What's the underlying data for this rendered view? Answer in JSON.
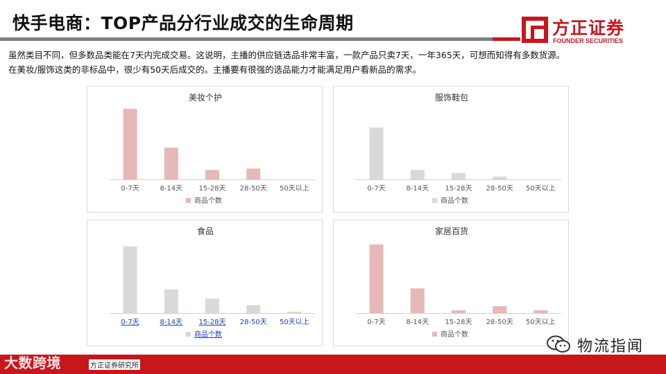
{
  "title": "快手电商：TOP产品分行业成交的生命周期",
  "logo": {
    "name": "方正证券",
    "sub": "FOUNDER SECURITIES",
    "color": "#c8161d"
  },
  "description": [
    "虽然类目不同，但多数品类能在7天内完成交易。这说明，主播的供应链选品非常丰富，一款产品只卖7天，一年365天，可想而知得有多数货源。",
    "在美妆/服饰这类的非标品中，很少有50天后成交的。主播要有很强的选品能力才能满足用户看新品的需求。"
  ],
  "footer": {
    "source": "方正证券研究所",
    "watermark": "大数跨境"
  },
  "wechat": {
    "name": "物流指闻"
  },
  "chart_data": [
    {
      "type": "bar",
      "title": "美妆个护",
      "categories": [
        "0-7天",
        "8-14天",
        "15-28天",
        "28-50天",
        "50天以上"
      ],
      "series": [
        {
          "name": "商品个数",
          "values": [
            98,
            44,
            13,
            15,
            0
          ]
        }
      ],
      "color": "#e6b8b7",
      "ylim": [
        0,
        100
      ],
      "grid": false,
      "legend": "bottom",
      "tick_links": false
    },
    {
      "type": "bar",
      "title": "服饰鞋包",
      "categories": [
        "0-7天",
        "8-14天",
        "15-28天",
        "28-50天",
        "50天以上"
      ],
      "series": [
        {
          "name": "商品个数",
          "values": [
            72,
            13,
            9,
            4,
            0
          ]
        }
      ],
      "color": "#d9d9d9",
      "ylim": [
        0,
        100
      ],
      "grid": false,
      "legend": "bottom",
      "tick_links": false
    },
    {
      "type": "bar",
      "title": "食品",
      "categories": [
        "0-7天",
        "8-14天",
        "15-28天",
        "28-50天",
        "50天以上"
      ],
      "series": [
        {
          "name": "商品个数",
          "values": [
            102,
            36,
            22,
            12,
            2
          ]
        }
      ],
      "color": "#d9d9d9",
      "ylim": [
        0,
        110
      ],
      "grid": false,
      "legend": "bottom",
      "tick_links": true
    },
    {
      "type": "bar",
      "title": "家居百货",
      "categories": [
        "0-7天",
        "8-14天",
        "15-28天",
        "28-50天",
        "50天以上"
      ],
      "series": [
        {
          "name": "商品个数",
          "values": [
            100,
            36,
            4,
            10,
            4
          ]
        }
      ],
      "color": "#e6b8b7",
      "ylim": [
        0,
        105
      ],
      "grid": false,
      "legend": "bottom",
      "tick_links": false
    }
  ]
}
